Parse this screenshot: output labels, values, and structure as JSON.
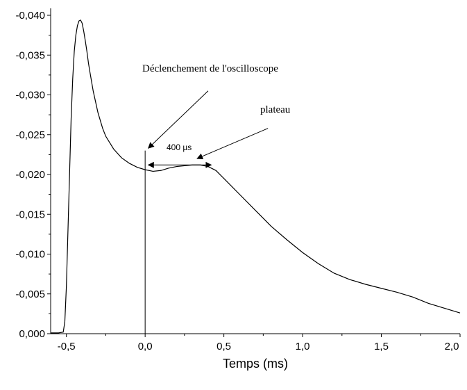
{
  "chart_data": {
    "type": "line",
    "title": "",
    "xlabel": "Temps (ms)",
    "ylabel": "",
    "xlim": [
      -0.6,
      2.0
    ],
    "ylim": [
      0.0,
      -0.04
    ],
    "y_axis_inverted": true,
    "grid": false,
    "legend": "none",
    "line_color": "#000000",
    "x_ticks": [
      "-0,5",
      "0,0",
      "0,5",
      "1,0",
      "1,5",
      "2,0"
    ],
    "y_ticks": [
      "0,000",
      "-0,005",
      "-0,010",
      "-0,015",
      "-0,020",
      "-0,025",
      "-0,030",
      "-0,035",
      "-0,040"
    ],
    "series": [
      {
        "x": [
          -0.6,
          -0.55,
          -0.52,
          -0.51,
          -0.5,
          -0.49,
          -0.48,
          -0.47,
          -0.46,
          -0.45,
          -0.44,
          -0.43,
          -0.42,
          -0.41,
          -0.4,
          -0.39,
          -0.38,
          -0.37,
          -0.36,
          -0.35,
          -0.33,
          -0.3,
          -0.27,
          -0.25,
          -0.2,
          -0.15,
          -0.1,
          -0.05,
          0.0,
          0.05,
          0.1,
          0.15,
          0.2,
          0.25,
          0.3,
          0.35,
          0.4,
          0.45,
          0.5,
          0.6,
          0.7,
          0.8,
          0.9,
          1.0,
          1.1,
          1.2,
          1.3,
          1.4,
          1.5,
          1.6,
          1.7,
          1.8,
          1.9,
          2.0
        ],
        "y": [
          -0.0001,
          -0.0001,
          -0.0002,
          -0.0015,
          -0.006,
          -0.013,
          -0.02,
          -0.027,
          -0.032,
          -0.0355,
          -0.0375,
          -0.0387,
          -0.0393,
          -0.0394,
          -0.039,
          -0.038,
          -0.0368,
          -0.0355,
          -0.034,
          -0.0328,
          -0.0305,
          -0.0278,
          -0.0258,
          -0.0248,
          -0.0232,
          -0.0221,
          -0.0214,
          -0.0209,
          -0.0206,
          -0.0204,
          -0.0205,
          -0.0208,
          -0.021,
          -0.0211,
          -0.0212,
          -0.0212,
          -0.021,
          -0.0205,
          -0.0195,
          -0.0175,
          -0.0155,
          -0.0135,
          -0.0118,
          -0.0102,
          -0.0088,
          -0.0076,
          -0.0068,
          -0.0062,
          -0.0057,
          -0.0052,
          -0.0046,
          -0.0038,
          -0.0032,
          -0.0026
        ]
      }
    ],
    "annotations": {
      "trigger_label": "Déclenchement de l'oscilloscope",
      "plateau_label": "plateau",
      "duration_label": "400 µs",
      "trigger_line_x": 0.0,
      "trigger_line_top_y": -0.023,
      "trigger_arrow": {
        "from": [
          0.4,
          -0.0305
        ],
        "to": [
          0.02,
          -0.0233
        ]
      },
      "plateau_arrow": {
        "from": [
          0.78,
          -0.0258
        ],
        "to": [
          0.33,
          -0.022
        ]
      },
      "duration_arrow": {
        "from": [
          0.02,
          -0.0212
        ],
        "to": [
          0.42,
          -0.0212
        ],
        "y": -0.0212
      }
    }
  }
}
